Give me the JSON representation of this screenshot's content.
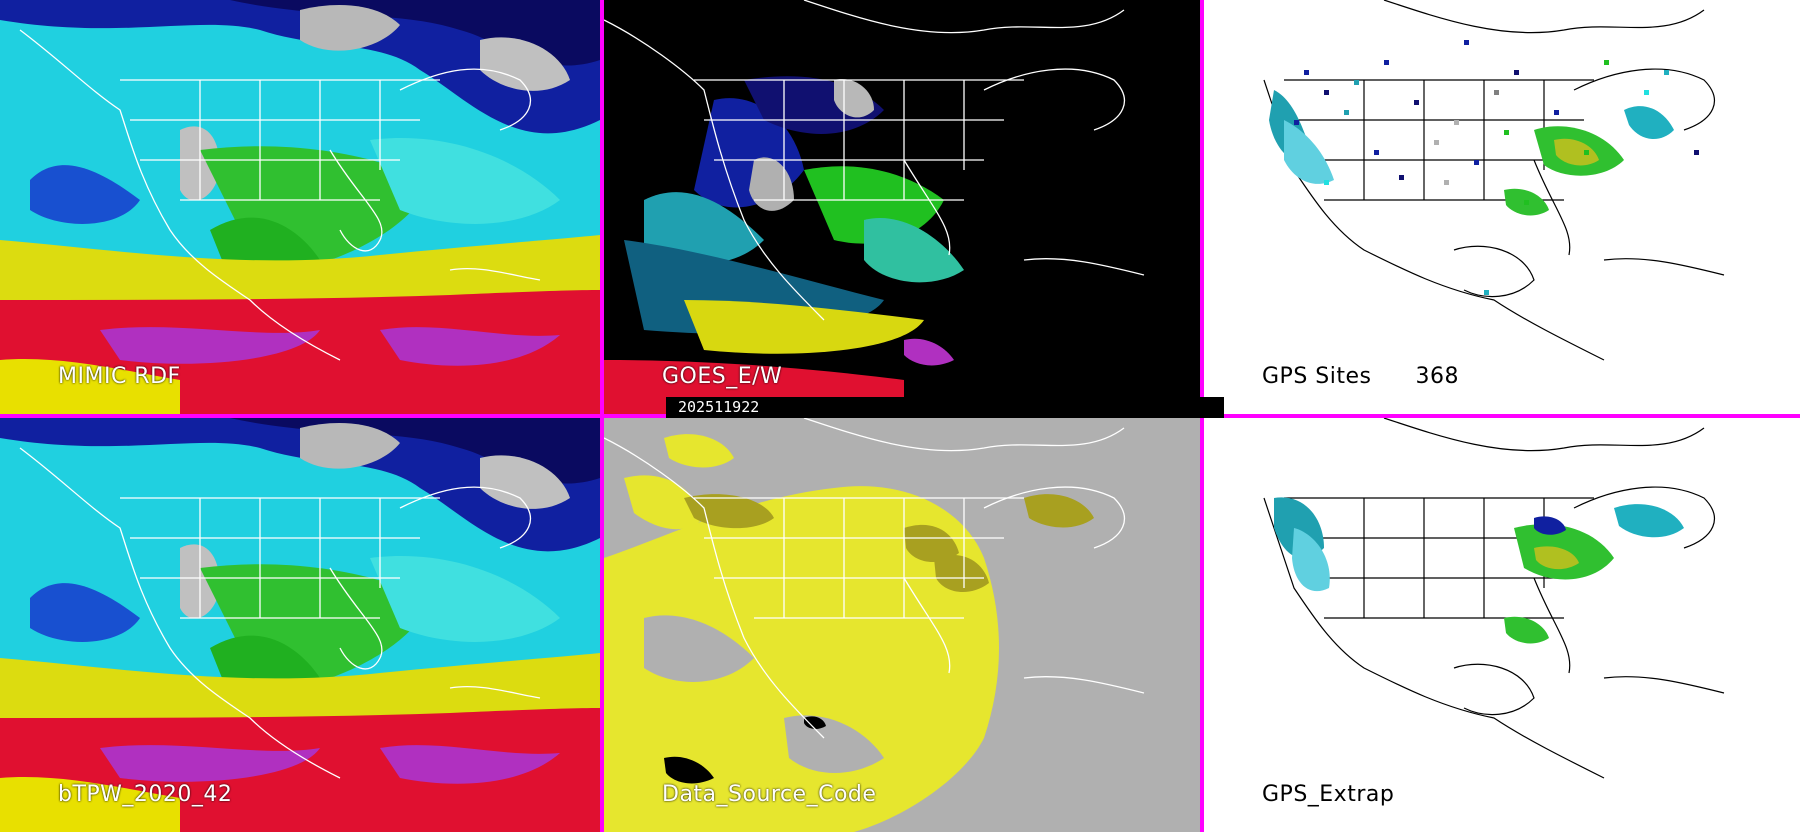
{
  "panels": [
    {
      "id": "mimic",
      "label": "MIMIC RDF",
      "theme": "moisture"
    },
    {
      "id": "goes",
      "label": "GOES_E/W",
      "theme": "goes"
    },
    {
      "id": "gps-sites",
      "label": "GPS Sites",
      "count": "368",
      "theme": "gps"
    },
    {
      "id": "btpw",
      "label": "bTPW_2020_42",
      "theme": "moisture"
    },
    {
      "id": "source",
      "label": "Data_Source_Code",
      "theme": "source"
    },
    {
      "id": "gps-extrap",
      "label": "GPS_Extrap",
      "theme": "gps-extrap"
    }
  ],
  "timestamp": "202511922",
  "colors": {
    "divider": "#ff00ff",
    "magenta": "#b030c0",
    "red": "#e01030",
    "yellow": "#e8e000",
    "green": "#20c020",
    "cyan": "#20e0e0",
    "blue": "#1030c0",
    "navy": "#101070",
    "gray": "#b0b0b0",
    "source_yellow": "#e6e62e",
    "source_olive": "#a8a020"
  }
}
